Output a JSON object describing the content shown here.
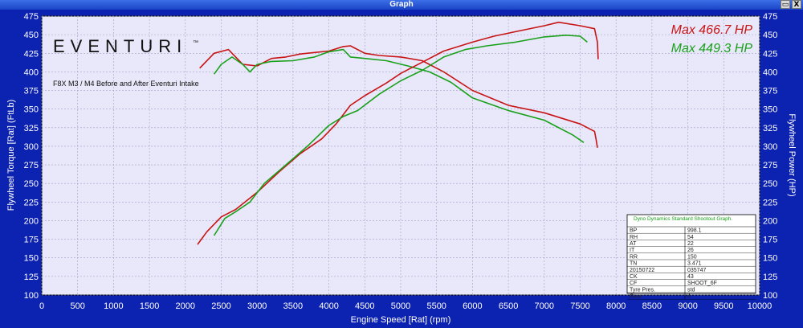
{
  "window": {
    "title": "Graph",
    "restore_glyph": "▭",
    "close_glyph": "X"
  },
  "logo": {
    "text": "EVENTURI",
    "trademark": "™"
  },
  "chart_data": {
    "type": "line",
    "title": "F8X M3 / M4 Before and After Eventuri Intake",
    "xlabel": "Engine Speed [Rat] (rpm)",
    "ylabel_left": "Flywheel Torque [Rat] (FtLb)",
    "ylabel_right": "Flywheel Power (HP)",
    "xlim": [
      0,
      10000
    ],
    "ylim": [
      100,
      475
    ],
    "xticks": [
      0,
      500,
      1000,
      1500,
      2000,
      2500,
      3000,
      3500,
      4000,
      4500,
      5000,
      5500,
      6000,
      6500,
      7000,
      7500,
      8000,
      8500,
      9000,
      9500,
      10000
    ],
    "yticks": [
      100,
      125,
      150,
      175,
      200,
      225,
      250,
      275,
      300,
      325,
      350,
      375,
      400,
      425,
      450,
      475
    ],
    "grid": true,
    "legend": [
      {
        "label": "Max 466.7 HP",
        "color": "#c81414"
      },
      {
        "label": "Max 449.3 HP",
        "color": "#1aa01a"
      }
    ],
    "series": [
      {
        "name": "Torque (after)",
        "color": "#c81414",
        "x": [
          2200,
          2400,
          2600,
          2800,
          3000,
          3200,
          3400,
          3600,
          3800,
          4000,
          4200,
          4300,
          4500,
          4700,
          5000,
          5300,
          5600,
          6000,
          6500,
          7000,
          7500,
          7700,
          7720,
          7740
        ],
        "y": [
          405,
          425,
          430,
          410,
          408,
          418,
          420,
          424,
          426,
          428,
          434,
          435,
          425,
          422,
          420,
          415,
          400,
          375,
          355,
          345,
          330,
          320,
          310,
          298
        ]
      },
      {
        "name": "Torque (before)",
        "color": "#1aa01a",
        "x": [
          2400,
          2500,
          2650,
          2800,
          2900,
          3000,
          3200,
          3500,
          3800,
          4000,
          4200,
          4300,
          4500,
          4800,
          5100,
          5400,
          5700,
          6000,
          6500,
          7000,
          7400,
          7550
        ],
        "y": [
          397,
          410,
          420,
          410,
          400,
          410,
          414,
          415,
          420,
          427,
          430,
          420,
          418,
          415,
          408,
          400,
          386,
          365,
          348,
          335,
          315,
          305
        ]
      },
      {
        "name": "Power (after)",
        "color": "#c81414",
        "x": [
          2170,
          2300,
          2500,
          2700,
          3000,
          3300,
          3600,
          3900,
          4100,
          4300,
          4500,
          4800,
          5000,
          5300,
          5600,
          6000,
          6300,
          6600,
          7000,
          7200,
          7500,
          7700,
          7740,
          7750
        ],
        "y": [
          168,
          185,
          205,
          215,
          238,
          265,
          290,
          310,
          330,
          355,
          368,
          385,
          398,
          413,
          428,
          440,
          448,
          454,
          462,
          466.7,
          462,
          458,
          440,
          417
        ]
      },
      {
        "name": "Power (before)",
        "color": "#1aa01a",
        "x": [
          2400,
          2550,
          2700,
          2900,
          3100,
          3400,
          3700,
          4000,
          4200,
          4400,
          4700,
          5000,
          5300,
          5600,
          5900,
          6200,
          6600,
          7000,
          7300,
          7500,
          7600
        ],
        "y": [
          180,
          203,
          212,
          225,
          250,
          275,
          300,
          328,
          340,
          348,
          370,
          388,
          402,
          420,
          430,
          435,
          440,
          447,
          449.3,
          448,
          440
        ]
      }
    ]
  },
  "info_table": {
    "header": "Dyno Dynamics Standard Shootout Graph.",
    "rows": [
      [
        "BP",
        "998.1"
      ],
      [
        "RH",
        "54"
      ],
      [
        "AT",
        "22"
      ],
      [
        "IT",
        "26"
      ],
      [
        "RR",
        "150"
      ],
      [
        "TN",
        "3.471"
      ],
      [
        "20150722",
        "035747"
      ],
      [
        "CK",
        "43"
      ],
      [
        "CF",
        "SHOOT_6F"
      ],
      [
        "Tyre Pres.",
        "std"
      ],
      [
        "Gear",
        "4"
      ]
    ]
  }
}
